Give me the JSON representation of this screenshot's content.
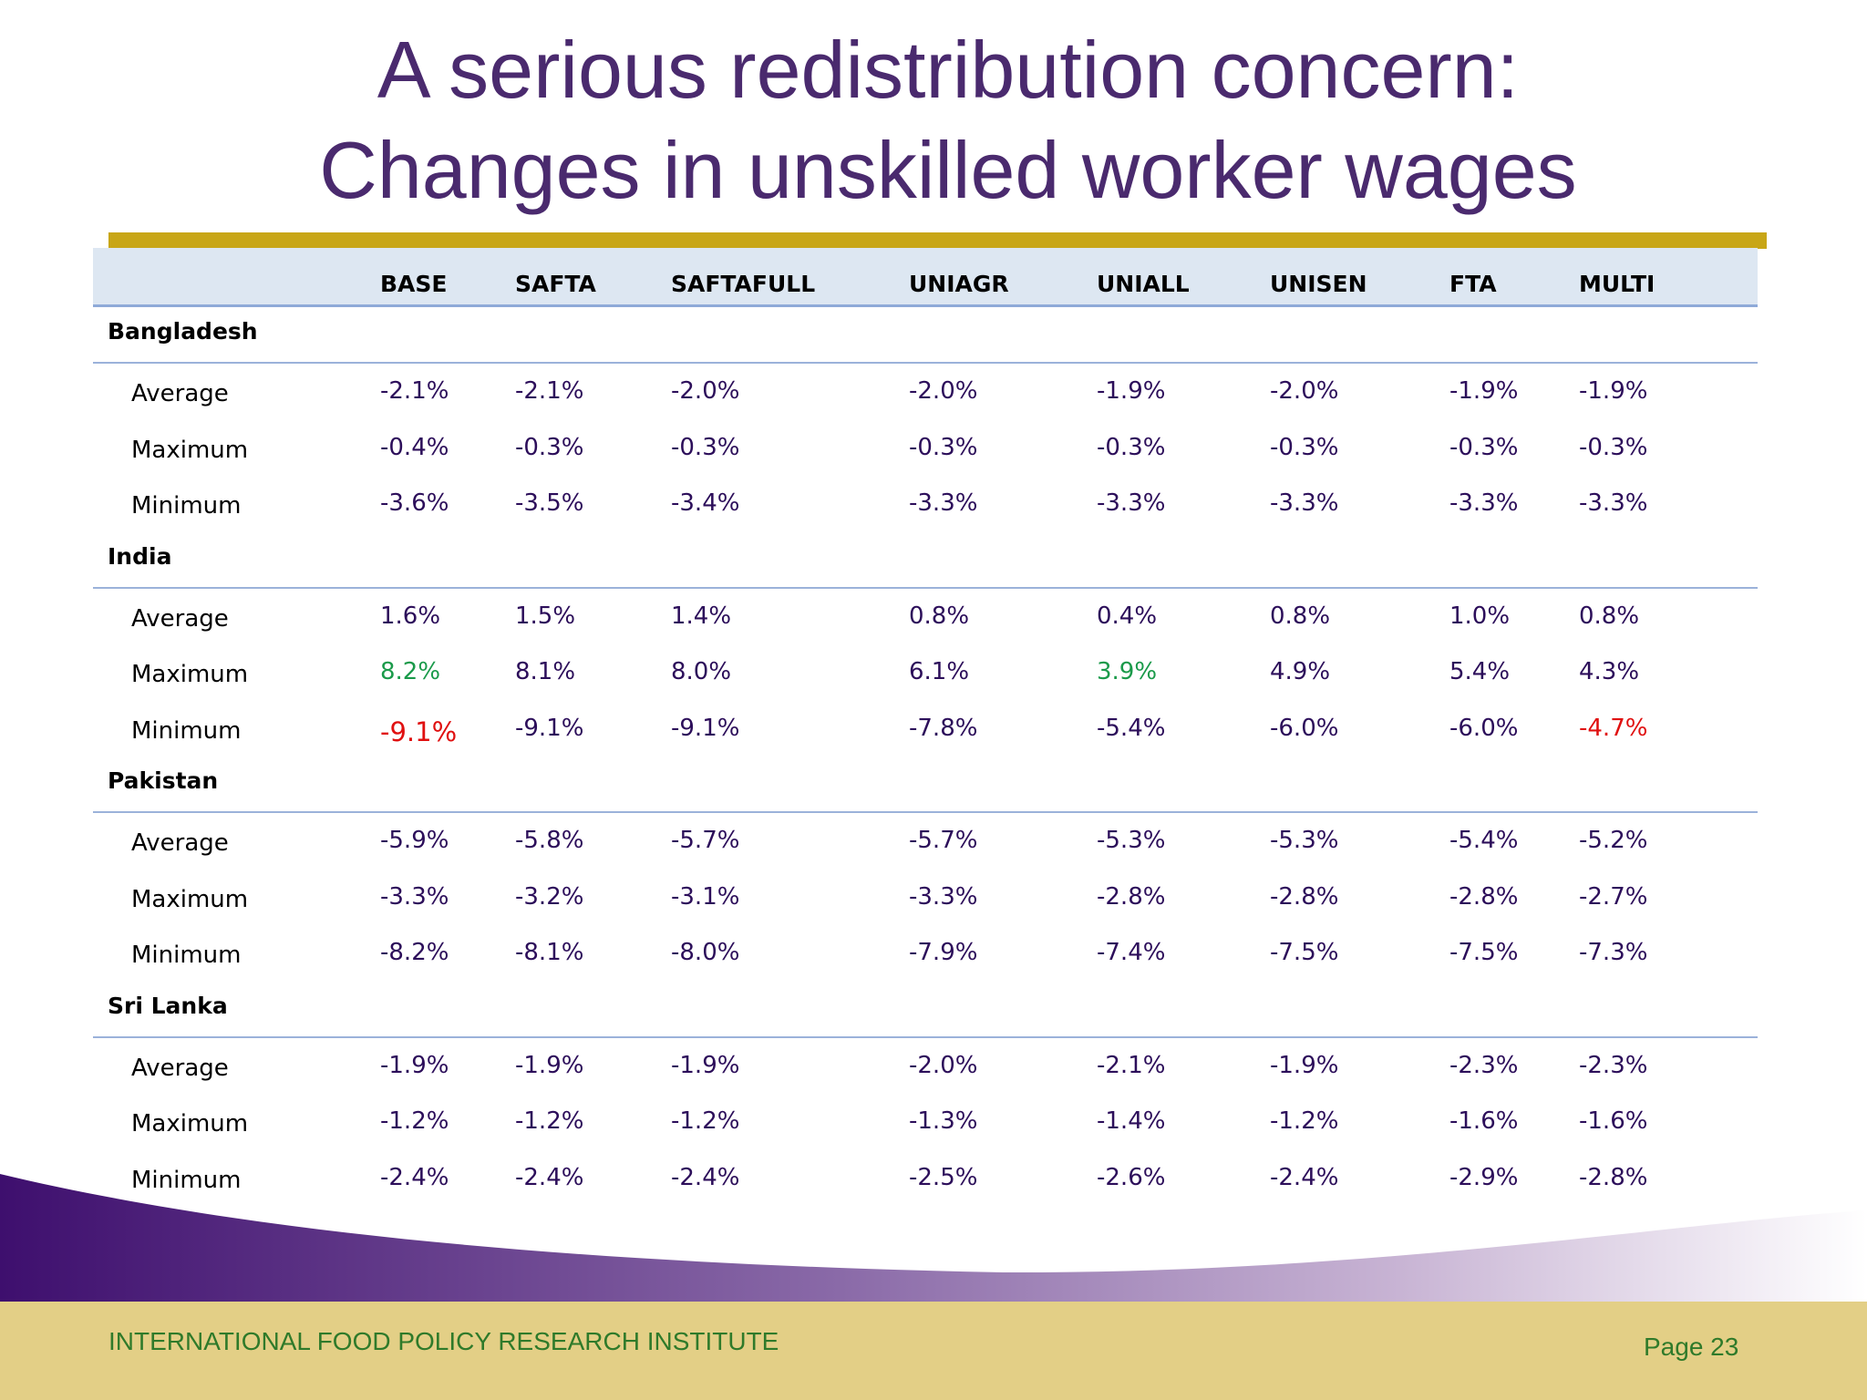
{
  "title": {
    "line1": "A serious redistribution concern:",
    "line2": "Changes in unskilled worker wages"
  },
  "table": {
    "columns": [
      "BASE",
      "SAFTA",
      "SAFTAFULL",
      "UNIAGR",
      "UNIALL",
      "UNISEN",
      "FTA",
      "MULTI"
    ],
    "countries": [
      {
        "name": "Bangladesh",
        "rows": [
          {
            "label": "Average",
            "values": [
              "-2.1%",
              "-2.1%",
              "-2.0%",
              "-2.0%",
              "-1.9%",
              "-2.0%",
              "-1.9%",
              "-1.9%"
            ]
          },
          {
            "label": "Maximum",
            "values": [
              "-0.4%",
              "-0.3%",
              "-0.3%",
              "-0.3%",
              "-0.3%",
              "-0.3%",
              "-0.3%",
              "-0.3%"
            ]
          },
          {
            "label": "Minimum",
            "values": [
              "-3.6%",
              "-3.5%",
              "-3.4%",
              "-3.3%",
              "-3.3%",
              "-3.3%",
              "-3.3%",
              "-3.3%"
            ]
          }
        ]
      },
      {
        "name": "India",
        "rows": [
          {
            "label": "Average",
            "values": [
              "1.6%",
              "1.5%",
              "1.4%",
              "0.8%",
              "0.4%",
              "0.8%",
              "1.0%",
              "0.8%"
            ]
          },
          {
            "label": "Maximum",
            "values": [
              "8.2%",
              "8.1%",
              "8.0%",
              "6.1%",
              "3.9%",
              "4.9%",
              "5.4%",
              "4.3%"
            ]
          },
          {
            "label": "Minimum",
            "values": [
              "-9.1%",
              "-9.1%",
              "-9.1%",
              "-7.8%",
              "-5.4%",
              "-6.0%",
              "-6.0%",
              "-4.7%"
            ]
          }
        ]
      },
      {
        "name": "Pakistan",
        "rows": [
          {
            "label": "Average",
            "values": [
              "-5.9%",
              "-5.8%",
              "-5.7%",
              "-5.7%",
              "-5.3%",
              "-5.3%",
              "-5.4%",
              "-5.2%"
            ]
          },
          {
            "label": "Maximum",
            "values": [
              "-3.3%",
              "-3.2%",
              "-3.1%",
              "-3.3%",
              "-2.8%",
              "-2.8%",
              "-2.8%",
              "-2.7%"
            ]
          },
          {
            "label": "Minimum",
            "values": [
              "-8.2%",
              "-8.1%",
              "-8.0%",
              "-7.9%",
              "-7.4%",
              "-7.5%",
              "-7.5%",
              "-7.3%"
            ]
          }
        ]
      },
      {
        "name": "Sri Lanka",
        "rows": [
          {
            "label": "Average",
            "values": [
              "-1.9%",
              "-1.9%",
              "-1.9%",
              "-2.0%",
              "-2.1%",
              "-1.9%",
              "-2.3%",
              "-2.3%"
            ]
          },
          {
            "label": "Maximum",
            "values": [
              "-1.2%",
              "-1.2%",
              "-1.2%",
              "-1.3%",
              "-1.4%",
              "-1.2%",
              "-1.6%",
              "-1.6%"
            ]
          },
          {
            "label": "Minimum",
            "values": [
              "-2.4%",
              "-2.4%",
              "-2.4%",
              "-2.5%",
              "-2.6%",
              "-2.4%",
              "-2.9%",
              "-2.8%"
            ]
          }
        ]
      }
    ],
    "highlights": [
      {
        "country": 1,
        "row": 1,
        "col": 0,
        "color": "green"
      },
      {
        "country": 1,
        "row": 1,
        "col": 4,
        "color": "green"
      },
      {
        "country": 1,
        "row": 2,
        "col": 0,
        "color": "red"
      },
      {
        "country": 1,
        "row": 2,
        "col": 7,
        "color": "red"
      }
    ]
  },
  "colors": {
    "title": "#4a2a6e",
    "rule": "#c8a616",
    "values": "#2c0e5a",
    "highlight_green": "#1a9a4a",
    "highlight_red": "#e01010",
    "footer_bg": "#e3cf86",
    "footer_text": "#2f7a2a"
  },
  "footer": {
    "org": "INTERNATIONAL FOOD POLICY RESEARCH INSTITUTE",
    "page": "Page 23"
  }
}
